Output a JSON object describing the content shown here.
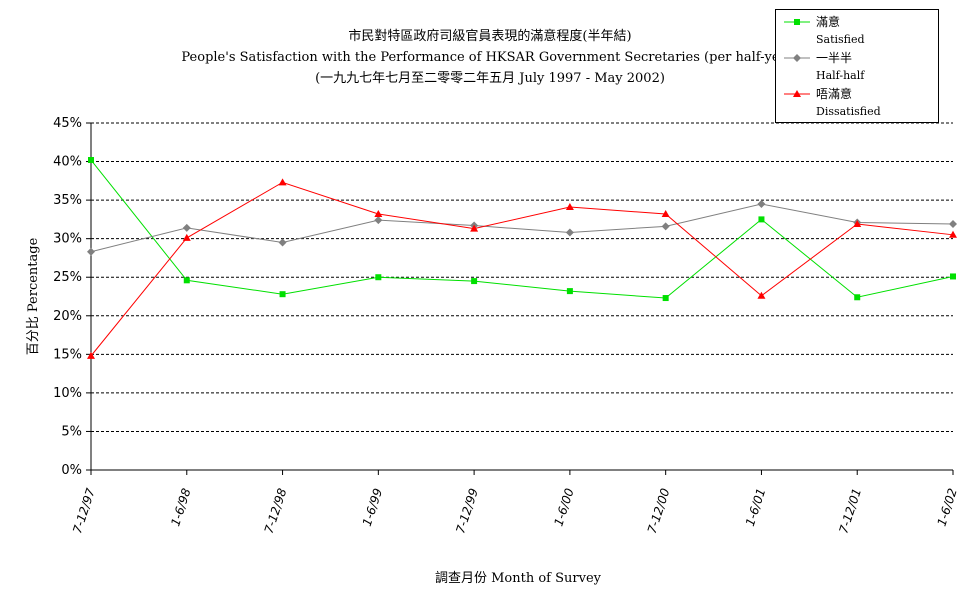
{
  "chart_data": {
    "type": "line",
    "title": "市民對特區政府司級官員表現的滿意程度(半年結)",
    "subtitle": "People's Satisfaction with the Performance of HKSAR Government Secretaries (per half-year)",
    "subtitle2": "(一九九七年七月至二零零二年五月 July 1997 -  May 2002)",
    "xlabel": "調查月份 Month of Survey",
    "ylabel": "百分比 Percentage",
    "categories": [
      "7-12/97",
      "1-6/98",
      "7-12/98",
      "1-6/99",
      "7-12/99",
      "1-6/00",
      "7-12/00",
      "1-6/01",
      "7-12/01",
      "1-6/02"
    ],
    "ylim": [
      0,
      45
    ],
    "yticks": [
      "0%",
      "5%",
      "10%",
      "15%",
      "20%",
      "25%",
      "30%",
      "35%",
      "40%",
      "45%"
    ],
    "grid": true,
    "legend_position": "top-right",
    "series": [
      {
        "name": "滿意",
        "name_en": "Satisfied",
        "color": "#00e000",
        "marker": "square",
        "values": [
          40.2,
          24.6,
          22.8,
          25.0,
          24.5,
          23.2,
          22.3,
          32.5,
          22.4,
          25.1
        ]
      },
      {
        "name": "一半半",
        "name_en": "Half-half",
        "color": "#808080",
        "marker": "diamond",
        "values": [
          28.3,
          31.4,
          29.5,
          32.4,
          31.7,
          30.8,
          31.6,
          34.5,
          32.1,
          31.9
        ]
      },
      {
        "name": "唔滿意",
        "name_en": "Dissatisfied",
        "color": "#ff0000",
        "marker": "triangle",
        "values": [
          14.8,
          30.1,
          37.3,
          33.2,
          31.3,
          34.1,
          33.2,
          22.6,
          31.9,
          30.5
        ]
      }
    ]
  }
}
